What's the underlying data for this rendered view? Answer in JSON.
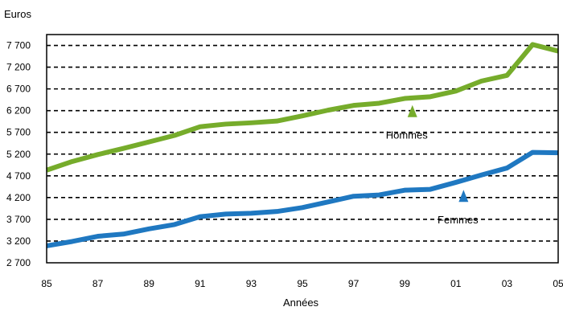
{
  "chart_data": {
    "type": "line",
    "ylabel": "Euros",
    "xlabel": "Années",
    "ylim": [
      2700,
      7950
    ],
    "yticks": [
      2700,
      3200,
      3700,
      4200,
      4700,
      5200,
      5700,
      6200,
      6700,
      7200,
      7700
    ],
    "ytick_labels": [
      "2 700",
      "3 200",
      "3 700",
      "4 200",
      "4 700",
      "5 200",
      "5 700",
      "6 200",
      "6 700",
      "7 200",
      "7 700"
    ],
    "xlim": [
      1985,
      2005
    ],
    "xticks": [
      1985,
      1987,
      1989,
      1991,
      1993,
      1995,
      1997,
      1999,
      2001,
      2003,
      2005
    ],
    "xtick_labels": [
      "85",
      "87",
      "89",
      "91",
      "93",
      "95",
      "97",
      "99",
      "01",
      "03",
      "05"
    ],
    "grid": "horizontal dashed",
    "x": [
      1985,
      1986,
      1987,
      1988,
      1989,
      1990,
      1991,
      1992,
      1993,
      1994,
      1995,
      1996,
      1997,
      1998,
      1999,
      2000,
      2001,
      2002,
      2003,
      2004,
      2005
    ],
    "series": [
      {
        "name": "Hommes",
        "color": "#76ac2b",
        "values": [
          4830,
          5030,
          5190,
          5330,
          5480,
          5630,
          5830,
          5890,
          5920,
          5960,
          6080,
          6210,
          6320,
          6370,
          6480,
          6520,
          6650,
          6880,
          7010,
          7720,
          7570
        ],
        "annotation": {
          "x": 1999.3,
          "y": 6180,
          "marker": "triangle-up"
        }
      },
      {
        "name": "Femmes",
        "color": "#1f78c1",
        "values": [
          3090,
          3190,
          3310,
          3360,
          3480,
          3580,
          3760,
          3820,
          3840,
          3880,
          3970,
          4100,
          4230,
          4260,
          4370,
          4390,
          4550,
          4720,
          4880,
          5240,
          5230
        ],
        "annotation": {
          "x": 2001.3,
          "y": 4230,
          "marker": "triangle-up"
        }
      }
    ]
  }
}
